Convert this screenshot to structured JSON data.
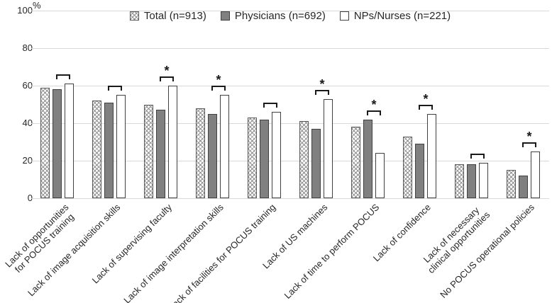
{
  "chart_data": {
    "type": "bar",
    "title": "",
    "y_unit": "%",
    "ylabel": "",
    "xlabel": "",
    "ylim": [
      0,
      100
    ],
    "yticks": [
      0,
      20,
      40,
      60,
      80,
      100
    ],
    "grid": true,
    "legend_position": "top-center",
    "categories": [
      "Lack of opportunities\nfor POCUS training",
      "Lack of image acquisition skills",
      "Lack of supervising faculty",
      "Lack of image interpretation skills",
      "Lack of facilities for POCUS training",
      "Lack of US machines",
      "Lack of time to perform POCUS",
      "Lack of confidence",
      "Lack of necessary\nclinical opportunities",
      "No POCUS operational policies"
    ],
    "series": [
      {
        "name": "Total (n=913)",
        "style": "hatched",
        "values": [
          59,
          52,
          50,
          48,
          43,
          41,
          38,
          33,
          18,
          15
        ]
      },
      {
        "name": "Physicians (n=692)",
        "style": "solid",
        "values": [
          58,
          51,
          47,
          45,
          42,
          37,
          42,
          29,
          18,
          12
        ]
      },
      {
        "name": "NPs/Nurses (n=221)",
        "style": "white",
        "values": [
          61,
          55,
          60,
          55,
          46,
          53,
          24,
          45,
          19,
          25
        ]
      }
    ],
    "significance_brackets": [
      {
        "category_index": 0,
        "between_series": [
          1,
          2
        ],
        "asterisk": false
      },
      {
        "category_index": 1,
        "between_series": [
          1,
          2
        ],
        "asterisk": false
      },
      {
        "category_index": 2,
        "between_series": [
          1,
          2
        ],
        "asterisk": true
      },
      {
        "category_index": 3,
        "between_series": [
          1,
          2
        ],
        "asterisk": true
      },
      {
        "category_index": 4,
        "between_series": [
          1,
          2
        ],
        "asterisk": false
      },
      {
        "category_index": 5,
        "between_series": [
          1,
          2
        ],
        "asterisk": true
      },
      {
        "category_index": 6,
        "between_series": [
          1,
          2
        ],
        "asterisk": true
      },
      {
        "category_index": 7,
        "between_series": [
          1,
          2
        ],
        "asterisk": true
      },
      {
        "category_index": 8,
        "between_series": [
          1,
          2
        ],
        "asterisk": false
      },
      {
        "category_index": 9,
        "between_series": [
          1,
          2
        ],
        "asterisk": true
      }
    ],
    "asterisk_glyph": "*",
    "colors": {
      "solid_fill": "#808080",
      "bar_border": "#404040",
      "hatch_border": "#595959",
      "gridline": "#d9d9d9",
      "text": "#262626",
      "bracket": "#1a1a1a"
    }
  }
}
